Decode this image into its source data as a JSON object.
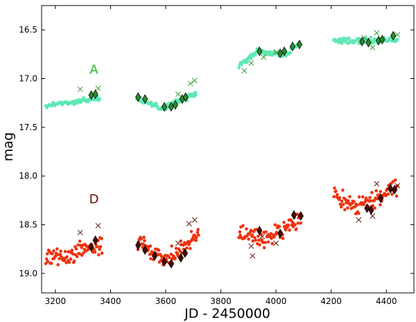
{
  "chart_data": {
    "type": "scatter",
    "xlabel": "JD - 2450000",
    "ylabel": "mag",
    "xlim": [
      3150,
      4500
    ],
    "ylim": [
      19.2,
      16.25
    ],
    "y_inverted": true,
    "xticks": [
      3200,
      3400,
      3600,
      3800,
      4000,
      4200,
      4400
    ],
    "yticks": [
      16.5,
      17.0,
      17.5,
      18.0,
      18.5,
      19.0
    ],
    "xtick_labels": [
      "3200",
      "3400",
      "3600",
      "3800",
      "4000",
      "4200",
      "4400"
    ],
    "ytick_labels": [
      "16.5",
      "17.0",
      "17.5",
      "18.0",
      "18.5",
      "19.0"
    ],
    "annotations": [
      {
        "text": "A",
        "x": 3340,
        "y": 16.95,
        "color": "#22bb22"
      },
      {
        "text": "D",
        "x": 3340,
        "y": 18.28,
        "color": "#661100"
      }
    ],
    "series": [
      {
        "name": "A",
        "label": "A",
        "dot_color": "#5ee8b4",
        "diamond_color": "#2d8a2d",
        "cross_color": "#3a9a3a",
        "dot_segments": [
          {
            "x": [
              3165,
              3360
            ],
            "y": [
              17.28,
              17.2
            ]
          },
          {
            "x": [
              3495,
              3590,
              3710
            ],
            "y": [
              17.2,
              17.31,
              17.15
            ]
          },
          {
            "x": [
              3865,
              3935,
              4030,
              4085
            ],
            "y": [
              16.88,
              16.71,
              16.76,
              16.64
            ]
          },
          {
            "x": [
              4210,
              4440
            ],
            "y": [
              16.62,
              16.6
            ]
          }
        ],
        "diamonds": [
          [
            3330,
            17.17
          ],
          [
            3345,
            17.16
          ],
          [
            3500,
            17.19
          ],
          [
            3525,
            17.21
          ],
          [
            3595,
            17.29
          ],
          [
            3620,
            17.29
          ],
          [
            3635,
            17.27
          ],
          [
            3660,
            17.21
          ],
          [
            3672,
            17.19
          ],
          [
            3940,
            16.72
          ],
          [
            4015,
            16.74
          ],
          [
            4030,
            16.72
          ],
          [
            4060,
            16.67
          ],
          [
            4085,
            16.65
          ],
          [
            4312,
            16.62
          ],
          [
            4335,
            16.63
          ],
          [
            4372,
            16.61
          ],
          [
            4385,
            16.6
          ],
          [
            4425,
            16.56
          ]
        ],
        "crosses": [
          [
            3290,
            17.11
          ],
          [
            3355,
            17.1
          ],
          [
            3645,
            17.16
          ],
          [
            3690,
            17.05
          ],
          [
            3705,
            17.02
          ],
          [
            3885,
            16.92
          ],
          [
            3910,
            16.84
          ],
          [
            3955,
            16.78
          ],
          [
            4000,
            16.73
          ],
          [
            4320,
            16.58
          ],
          [
            4350,
            16.68
          ],
          [
            4365,
            16.53
          ],
          [
            4440,
            16.55
          ]
        ]
      },
      {
        "name": "D",
        "label": "D",
        "dot_color": "#ee3311",
        "diamond_color": "#4a0a00",
        "cross_color": "#5a1a10",
        "dot_segments": [
          {
            "x": [
              3165,
              3250,
              3300,
              3370
            ],
            "y": [
              18.85,
              18.82,
              18.75,
              18.73
            ]
          },
          {
            "x": [
              3500,
              3600,
              3720
            ],
            "y": [
              18.68,
              18.86,
              18.6
            ]
          },
          {
            "x": [
              3865,
              3960,
              4060,
              4090
            ],
            "y": [
              18.6,
              18.65,
              18.5,
              18.42
            ]
          },
          {
            "x": [
              4210,
              4300,
              4440
            ],
            "y": [
              18.2,
              18.32,
              18.12
            ]
          }
        ],
        "diamonds": [
          [
            3345,
            18.66
          ],
          [
            3330,
            18.73
          ],
          [
            3500,
            18.71
          ],
          [
            3525,
            18.76
          ],
          [
            3560,
            18.82
          ],
          [
            3595,
            18.88
          ],
          [
            3620,
            18.9
          ],
          [
            3655,
            18.84
          ],
          [
            3670,
            18.79
          ],
          [
            3940,
            18.56
          ],
          [
            4015,
            18.59
          ],
          [
            4065,
            18.4
          ],
          [
            4090,
            18.41
          ],
          [
            4330,
            18.33
          ],
          [
            4345,
            18.35
          ],
          [
            4380,
            18.23
          ],
          [
            4415,
            18.13
          ],
          [
            4430,
            18.14
          ]
        ],
        "crosses": [
          [
            3290,
            18.58
          ],
          [
            3355,
            18.51
          ],
          [
            3645,
            18.69
          ],
          [
            3685,
            18.49
          ],
          [
            3705,
            18.45
          ],
          [
            3910,
            18.72
          ],
          [
            3915,
            18.82
          ],
          [
            3950,
            18.62
          ],
          [
            4000,
            18.69
          ],
          [
            4300,
            18.45
          ],
          [
            4350,
            18.41
          ],
          [
            4365,
            18.08
          ],
          [
            4440,
            18.1
          ]
        ]
      }
    ]
  }
}
